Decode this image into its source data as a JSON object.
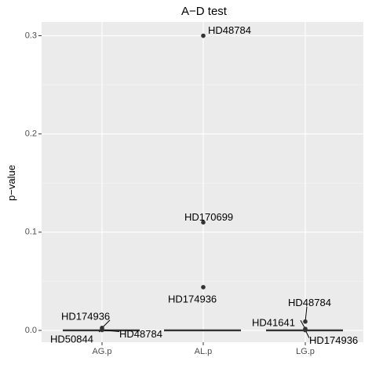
{
  "chart_data": {
    "type": "scatter",
    "title": "A−D test",
    "xlabel": "",
    "ylabel": "p−value",
    "categories": [
      "AG.p",
      "AL.p",
      "LG.p"
    ],
    "ylim": [
      -0.012,
      0.314
    ],
    "yticks": [
      0.0,
      0.1,
      0.2,
      0.3
    ],
    "ytick_labels": [
      "0.0",
      "0.1",
      "0.2",
      "0.3"
    ],
    "grid": true,
    "panel_color": "#ebebeb",
    "point_color": "#333333",
    "points": [
      {
        "category": "AG.p",
        "y": 0.0025,
        "label": "HD174936"
      },
      {
        "category": "AG.p",
        "y": 0.0008,
        "label": "HD50844"
      },
      {
        "category": "AG.p",
        "y": 0.0004,
        "label": "HD48784"
      },
      {
        "category": "AL.p",
        "y": 0.3,
        "label": "HD48784"
      },
      {
        "category": "AL.p",
        "y": 0.11,
        "label": "HD170699"
      },
      {
        "category": "AL.p",
        "y": 0.044,
        "label": "HD174936"
      },
      {
        "category": "LG.p",
        "y": 0.009,
        "label": "HD48784"
      },
      {
        "category": "LG.p",
        "y": 0.0015,
        "label": "HD41641"
      },
      {
        "category": "LG.p",
        "y": 0.0003,
        "label": "HD174936"
      }
    ],
    "medians": [
      {
        "category": "AG.p",
        "y": 0.0
      },
      {
        "category": "AL.p",
        "y": 0.0
      },
      {
        "category": "LG.p",
        "y": 0.0
      }
    ]
  }
}
